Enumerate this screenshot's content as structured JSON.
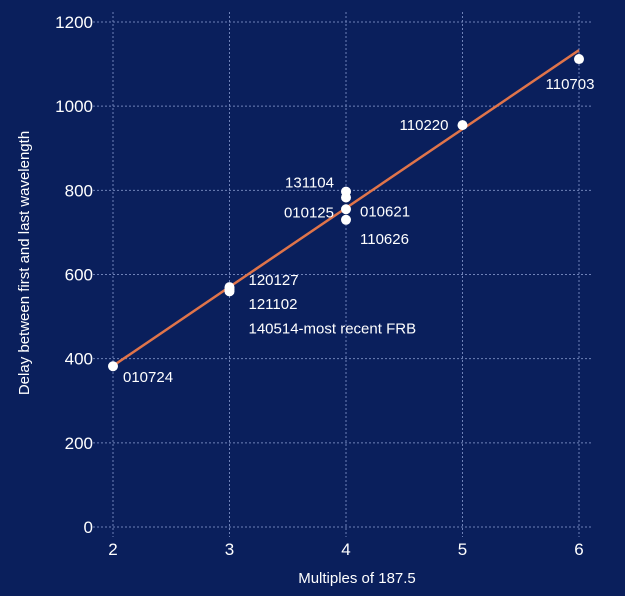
{
  "chart_data": {
    "type": "scatter",
    "title": "",
    "xlabel": "Multiples of 187.5",
    "ylabel": "Delay between first and last wavelength",
    "xlim": [
      2,
      6
    ],
    "ylim": [
      0,
      1200
    ],
    "xticks": [
      2,
      3,
      4,
      5,
      6
    ],
    "yticks": [
      0,
      200,
      400,
      600,
      800,
      1000,
      1200
    ],
    "grid": true,
    "colors": {
      "background": "#0a1f5c",
      "grid": "#6f82b8",
      "line": "#e0744a",
      "points": "#ffffff",
      "text": "#ffffff"
    },
    "points": [
      {
        "x": 2,
        "y": 382
      },
      {
        "x": 3,
        "y": 570
      },
      {
        "x": 3,
        "y": 565
      },
      {
        "x": 3,
        "y": 560
      },
      {
        "x": 4,
        "y": 797
      },
      {
        "x": 4,
        "y": 783
      },
      {
        "x": 4,
        "y": 755
      },
      {
        "x": 4,
        "y": 730
      },
      {
        "x": 5,
        "y": 955
      },
      {
        "x": 6,
        "y": 1112
      }
    ],
    "fit_line": {
      "x": [
        2,
        6
      ],
      "y": [
        383,
        1133
      ]
    },
    "annotations": [
      {
        "x": 2,
        "y": 382,
        "text": "010724"
      },
      {
        "x": 3,
        "y": 570,
        "text": "120127"
      },
      {
        "x": 3,
        "y": 565,
        "text": "121102"
      },
      {
        "x": 3,
        "y": 560,
        "text": "140514-most recent FRB"
      },
      {
        "x": 4,
        "y": 797,
        "text": "131104"
      },
      {
        "x": 4,
        "y": 783,
        "text": "010125"
      },
      {
        "x": 4,
        "y": 755,
        "text": "010621"
      },
      {
        "x": 4,
        "y": 730,
        "text": "110626"
      },
      {
        "x": 5,
        "y": 955,
        "text": "110220"
      },
      {
        "x": 6,
        "y": 1112,
        "text": "110703"
      }
    ]
  }
}
